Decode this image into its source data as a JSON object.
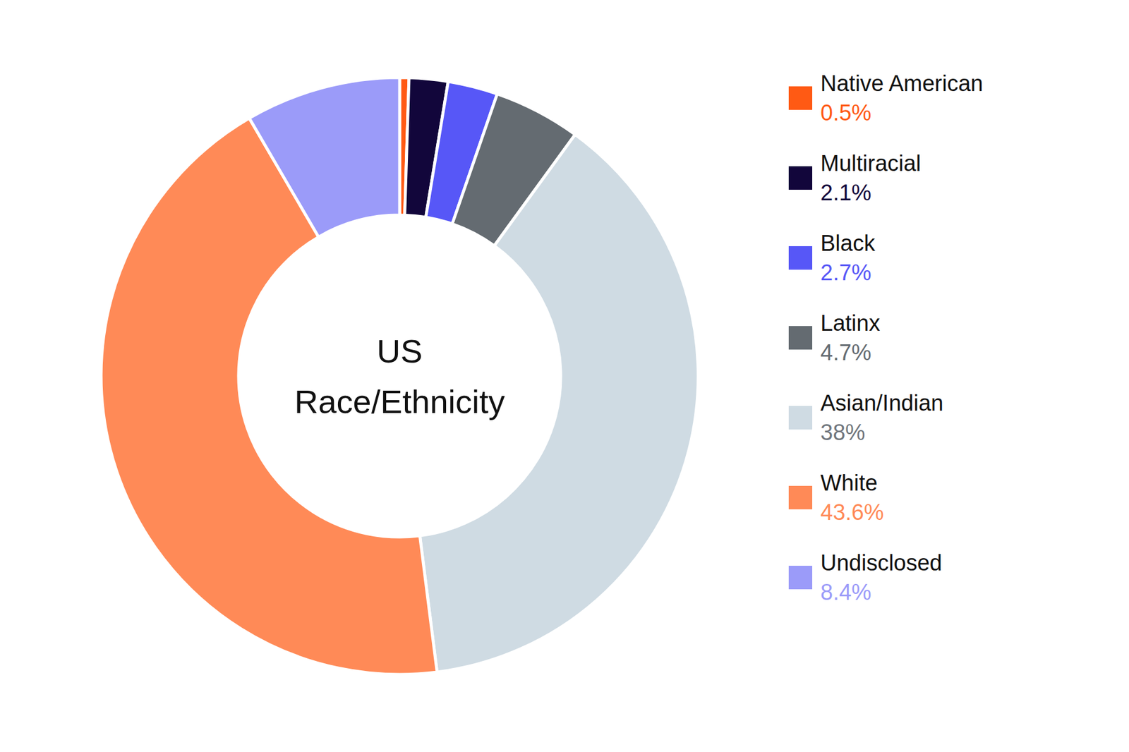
{
  "chart_data": {
    "type": "donut",
    "title": "US Race/Ethnicity",
    "categories": [
      "Native American",
      "Multiracial",
      "Black",
      "Latinx",
      "Asian/Indian",
      "White",
      "Undisclosed"
    ],
    "values": [
      0.5,
      2.1,
      2.7,
      4.7,
      38,
      43.6,
      8.4
    ],
    "value_labels": [
      "0.5%",
      "2.1%",
      "2.7%",
      "4.7%",
      "38%",
      "43.6%",
      "8.4%"
    ],
    "colors": [
      "#ff5a14",
      "#12063b",
      "#5757f7",
      "#646b71",
      "#cfdbe3",
      "#ff8a57",
      "#9b9bf9"
    ],
    "legend": "right"
  }
}
